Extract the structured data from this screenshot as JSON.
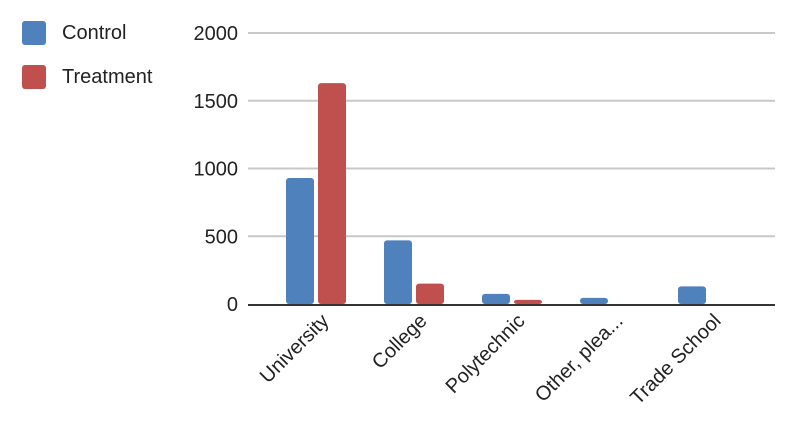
{
  "chart_data": {
    "type": "bar",
    "categories": [
      "University",
      "College",
      "Polytechnic",
      "Other, plea...",
      "Trade School"
    ],
    "series": [
      {
        "name": "Control",
        "color": "#4F81BD",
        "values": [
          930,
          470,
          75,
          45,
          130
        ]
      },
      {
        "name": "Treatment",
        "color": "#C0504D",
        "values": [
          1630,
          150,
          30,
          0,
          0
        ]
      }
    ],
    "ylim": [
      0,
      2000
    ],
    "yticks": [
      0,
      500,
      1000,
      1500,
      2000
    ],
    "grid": true,
    "legend": "top-left"
  }
}
